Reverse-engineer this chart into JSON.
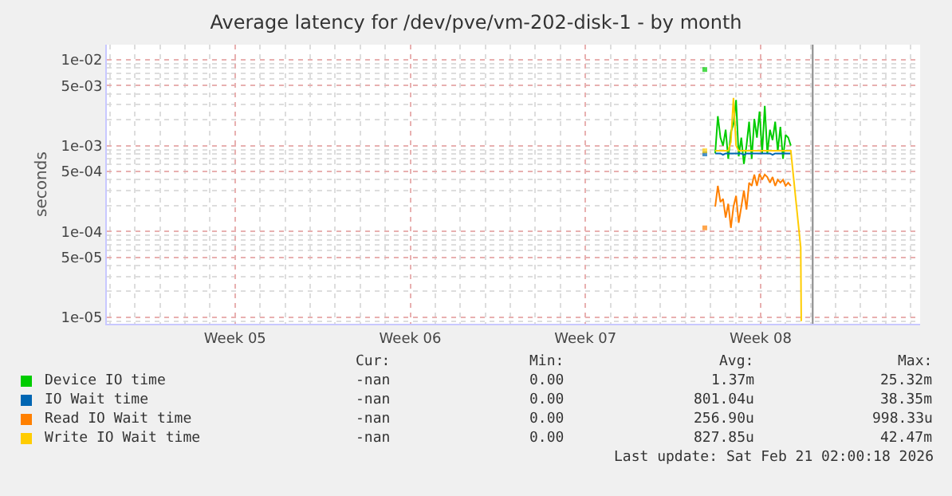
{
  "chart_data": {
    "type": "line",
    "title": "Average latency for /dev/pve/vm-202-disk-1 - by month",
    "ylabel": "seconds",
    "log": "y",
    "grid": true,
    "legend": "bottom",
    "marker": "none",
    "line_style": "solid",
    "xlim": [
      "2026-01-23T21:00",
      "2026-02-25T09:00"
    ],
    "xticks": [
      {
        "value": "2026-01-29",
        "label": "Week 05"
      },
      {
        "value": "2026-02-05",
        "label": "Week 06"
      },
      {
        "value": "2026-02-12",
        "label": "Week 07"
      },
      {
        "value": "2026-02-19",
        "label": "Week 08"
      }
    ],
    "ylim": [
      8.4e-06,
      0.015
    ],
    "yticks": [
      {
        "value": 1e-05,
        "label": "1e-05"
      },
      {
        "value": 5e-05,
        "label": "5e-05"
      },
      {
        "value": 0.0001,
        "label": "1e-04"
      },
      {
        "value": 0.0005,
        "label": "5e-04"
      },
      {
        "value": 0.001,
        "label": "1e-03"
      },
      {
        "value": 0.005,
        "label": "5e-03"
      },
      {
        "value": 0.01,
        "label": "1e-02"
      }
    ],
    "ref_lines": [
      {
        "axis": "x",
        "value": "2026-02-21T02:00",
        "color": "#888888"
      }
    ],
    "x": [
      "2026-02-16T18:30",
      "2026-02-16T23:00",
      "2026-02-17T04:30",
      "2026-02-17T07:00",
      "2026-02-17T09:30",
      "2026-02-17T12:00",
      "2026-02-17T14:30",
      "2026-02-17T17:00",
      "2026-02-17T19:30",
      "2026-02-17T22:00",
      "2026-02-18T00:30",
      "2026-02-18T03:00",
      "2026-02-18T05:30",
      "2026-02-18T08:00",
      "2026-02-18T10:30",
      "2026-02-18T13:00",
      "2026-02-18T15:30",
      "2026-02-18T18:00",
      "2026-02-18T20:30",
      "2026-02-18T23:00",
      "2026-02-19T01:30",
      "2026-02-19T04:00",
      "2026-02-19T06:30",
      "2026-02-19T09:00",
      "2026-02-19T11:30",
      "2026-02-19T14:00",
      "2026-02-19T16:30",
      "2026-02-19T19:00",
      "2026-02-19T21:30",
      "2026-02-20T00:00",
      "2026-02-20T02:30",
      "2026-02-20T05:00",
      "2026-02-20T14:30",
      "2026-02-20T15:00"
    ],
    "series": [
      {
        "name": "Device IO time",
        "color": "#00cc00",
        "values": [
          0.0077,
          null,
          0.00081,
          0.0022,
          0.00124,
          0.001,
          0.00153,
          0.0007,
          0.00143,
          0.00178,
          0.0034,
          0.00075,
          0.00124,
          0.00061,
          0.001,
          0.0019,
          0.0007,
          0.00205,
          0.00124,
          0.0025,
          0.00081,
          0.0029,
          0.00081,
          0.00153,
          0.00116,
          0.0019,
          0.00087,
          0.00165,
          0.0007,
          0.00133,
          0.00124,
          0.001,
          null,
          null
        ]
      },
      {
        "name": "IO Wait time",
        "color": "#0066b3",
        "values": [
          0.0008,
          null,
          0.00081,
          0.00081,
          0.00081,
          0.00078,
          0.00081,
          0.00081,
          0.00081,
          0.00081,
          0.00081,
          0.00081,
          0.00081,
          0.00078,
          0.00081,
          0.00081,
          0.00081,
          0.00081,
          0.00081,
          0.00081,
          0.00081,
          0.00081,
          0.00081,
          0.00081,
          0.00078,
          0.00081,
          0.00081,
          0.00081,
          0.00081,
          0.00081,
          0.00081,
          0.00081,
          null,
          null
        ]
      },
      {
        "name": "Read IO Wait time",
        "color": "#ff8000",
        "values": [
          0.00011,
          null,
          0.000194,
          0.00034,
          0.00022,
          0.00024,
          0.000145,
          0.00021,
          0.00011,
          0.000194,
          0.00026,
          0.000126,
          0.000194,
          0.0003,
          0.00018,
          0.00037,
          0.00034,
          0.00046,
          0.00034,
          0.00047,
          0.0004,
          0.00046,
          0.00043,
          0.00037,
          0.00043,
          0.00034,
          0.0004,
          0.00037,
          0.0004,
          0.00034,
          0.00037,
          0.00034,
          null,
          null
        ]
      },
      {
        "name": "Write IO Wait time",
        "color": "#ffcc00",
        "values": [
          0.00087,
          null,
          0.00087,
          0.00087,
          0.00087,
          0.00087,
          0.00087,
          0.00087,
          0.0011,
          0.0036,
          0.001,
          0.00087,
          0.00087,
          0.00087,
          0.00087,
          0.00087,
          0.00087,
          0.00087,
          0.00087,
          0.00087,
          0.00087,
          0.00087,
          0.00087,
          0.00087,
          0.00087,
          0.00087,
          0.00087,
          0.00087,
          0.00087,
          0.00087,
          0.00087,
          0.00087,
          6.5e-05,
          9e-06
        ]
      }
    ],
    "annotations": [
      "Cur:",
      "Min:",
      "Avg:",
      "Max:",
      "-nan",
      "0.00",
      "1.37m",
      "25.32m",
      "-nan",
      "0.00",
      "801.04u",
      "38.35m",
      "-nan",
      "0.00",
      "256.90u",
      "998.33u",
      "-nan",
      "0.00",
      "827.85u",
      "42.47m",
      "Last update: Sat Feb 21 02:00:18 2026"
    ]
  }
}
